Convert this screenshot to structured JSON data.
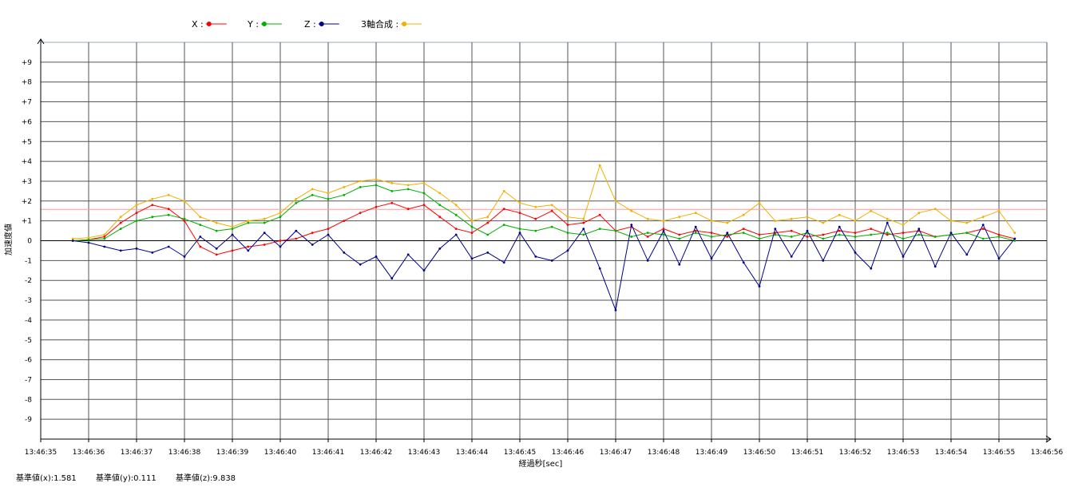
{
  "chart_data": {
    "type": "line",
    "xlabel": "経過秒[sec]",
    "ylabel": "加速度値",
    "x_ticks": [
      "13:46:35",
      "13:46:36",
      "13:46:37",
      "13:46:38",
      "13:46:39",
      "13:46:40",
      "13:46:41",
      "13:46:42",
      "13:46:43",
      "13:46:44",
      "13:46:45",
      "13:46:46",
      "13:46:47",
      "13:46:48",
      "13:46:49",
      "13:46:50",
      "13:46:51",
      "13:46:52",
      "13:46:53",
      "13:46:54",
      "13:46:55",
      "13:46:56"
    ],
    "xlim": [
      0,
      21
    ],
    "y_ticks": [
      "+9",
      "+8",
      "+7",
      "+6",
      "+5",
      "+4",
      "+3",
      "+2",
      "+1",
      "0",
      "-1",
      "-2",
      "-3",
      "-4",
      "-5",
      "-6",
      "-7",
      "-8",
      "-9"
    ],
    "ylim": [
      -10,
      10
    ],
    "grid": true,
    "legend_position": "top",
    "reference_line": 1.581,
    "series": [
      {
        "name": "X",
        "legend_label": "X :",
        "color": "#ff0000",
        "x": [
          0.67,
          1.0,
          1.33,
          1.67,
          2.0,
          2.33,
          2.67,
          3.0,
          3.33,
          3.67,
          4.0,
          4.33,
          4.67,
          5.0,
          5.33,
          5.67,
          6.0,
          6.33,
          6.67,
          7.0,
          7.33,
          7.67,
          8.0,
          8.33,
          8.67,
          9.0,
          9.33,
          9.67,
          10.0,
          10.33,
          10.67,
          11.0,
          11.33,
          11.67,
          12.0,
          12.33,
          12.67,
          13.0,
          13.33,
          13.67,
          14.0,
          14.33,
          14.67,
          15.0,
          15.33,
          15.67,
          16.0,
          16.33,
          16.67,
          17.0,
          17.33,
          17.67,
          18.0,
          18.33,
          18.67,
          19.0,
          19.33,
          19.67,
          20.0,
          20.33
        ],
        "y": [
          0.0,
          0.05,
          0.2,
          0.9,
          1.4,
          1.8,
          1.6,
          1.0,
          -0.3,
          -0.7,
          -0.5,
          -0.3,
          -0.2,
          0.0,
          0.1,
          0.4,
          0.6,
          1.0,
          1.4,
          1.7,
          1.9,
          1.6,
          1.8,
          1.2,
          0.6,
          0.4,
          0.9,
          1.6,
          1.4,
          1.1,
          1.5,
          0.8,
          0.9,
          1.3,
          0.5,
          0.7,
          0.2,
          0.6,
          0.3,
          0.5,
          0.4,
          0.2,
          0.6,
          0.3,
          0.4,
          0.5,
          0.2,
          0.3,
          0.5,
          0.4,
          0.6,
          0.3,
          0.4,
          0.5,
          0.2,
          0.3,
          0.4,
          0.6,
          0.3,
          0.1
        ]
      },
      {
        "name": "Y",
        "legend_label": "Y :",
        "color": "#00b000",
        "x": [
          0.67,
          1.0,
          1.33,
          1.67,
          2.0,
          2.33,
          2.67,
          3.0,
          3.33,
          3.67,
          4.0,
          4.33,
          4.67,
          5.0,
          5.33,
          5.67,
          6.0,
          6.33,
          6.67,
          7.0,
          7.33,
          7.67,
          8.0,
          8.33,
          8.67,
          9.0,
          9.33,
          9.67,
          10.0,
          10.33,
          10.67,
          11.0,
          11.33,
          11.67,
          12.0,
          12.33,
          12.67,
          13.0,
          13.33,
          13.67,
          14.0,
          14.33,
          14.67,
          15.0,
          15.33,
          15.67,
          16.0,
          16.33,
          16.67,
          17.0,
          17.33,
          17.67,
          18.0,
          18.33,
          18.67,
          19.0,
          19.33,
          19.67,
          20.0,
          20.33
        ],
        "y": [
          0.0,
          0.05,
          0.1,
          0.6,
          1.0,
          1.2,
          1.3,
          1.1,
          0.8,
          0.5,
          0.6,
          0.9,
          0.9,
          1.2,
          1.9,
          2.3,
          2.1,
          2.3,
          2.7,
          2.8,
          2.5,
          2.6,
          2.4,
          1.8,
          1.3,
          0.7,
          0.3,
          0.8,
          0.6,
          0.5,
          0.7,
          0.4,
          0.3,
          0.6,
          0.5,
          0.2,
          0.4,
          0.3,
          0.1,
          0.4,
          0.2,
          0.3,
          0.4,
          0.1,
          0.3,
          0.2,
          0.4,
          0.1,
          0.3,
          0.2,
          0.3,
          0.4,
          0.1,
          0.3,
          0.2,
          0.3,
          0.4,
          0.1,
          0.2,
          0.0
        ]
      },
      {
        "name": "Z",
        "legend_label": "Z :",
        "color": "#00008b",
        "x": [
          0.67,
          1.0,
          1.33,
          1.67,
          2.0,
          2.33,
          2.67,
          3.0,
          3.33,
          3.67,
          4.0,
          4.33,
          4.67,
          5.0,
          5.33,
          5.67,
          6.0,
          6.33,
          6.67,
          7.0,
          7.33,
          7.67,
          8.0,
          8.33,
          8.67,
          9.0,
          9.33,
          9.67,
          10.0,
          10.33,
          10.67,
          11.0,
          11.33,
          11.67,
          12.0,
          12.33,
          12.67,
          13.0,
          13.33,
          13.67,
          14.0,
          14.33,
          14.67,
          15.0,
          15.33,
          15.67,
          16.0,
          16.33,
          16.67,
          17.0,
          17.33,
          17.67,
          18.0,
          18.33,
          18.67,
          19.0,
          19.33,
          19.67,
          20.0,
          20.33
        ],
        "y": [
          0.0,
          -0.1,
          -0.3,
          -0.5,
          -0.4,
          -0.6,
          -0.3,
          -0.8,
          0.2,
          -0.4,
          0.3,
          -0.5,
          0.4,
          -0.3,
          0.5,
          -0.2,
          0.3,
          -0.6,
          -1.2,
          -0.8,
          -1.9,
          -0.7,
          -1.5,
          -0.4,
          0.3,
          -0.9,
          -0.6,
          -1.1,
          0.4,
          -0.8,
          -1.0,
          -0.5,
          0.6,
          -1.4,
          -3.5,
          0.8,
          -1.0,
          0.5,
          -1.2,
          0.7,
          -0.9,
          0.4,
          -1.1,
          -2.3,
          0.6,
          -0.8,
          0.5,
          -1.0,
          0.7,
          -0.6,
          -1.4,
          0.9,
          -0.8,
          0.6,
          -1.3,
          0.4,
          -0.7,
          0.8,
          -0.9,
          0.1
        ]
      },
      {
        "name": "3軸合成",
        "legend_label": "3軸合成 :",
        "color": "#f0b000",
        "x": [
          0.67,
          1.0,
          1.33,
          1.67,
          2.0,
          2.33,
          2.67,
          3.0,
          3.33,
          3.67,
          4.0,
          4.33,
          4.67,
          5.0,
          5.33,
          5.67,
          6.0,
          6.33,
          6.67,
          7.0,
          7.33,
          7.67,
          8.0,
          8.33,
          8.67,
          9.0,
          9.33,
          9.67,
          10.0,
          10.33,
          10.67,
          11.0,
          11.33,
          11.67,
          12.0,
          12.33,
          12.67,
          13.0,
          13.33,
          13.67,
          14.0,
          14.33,
          14.67,
          15.0,
          15.33,
          15.67,
          16.0,
          16.33,
          16.67,
          17.0,
          17.33,
          17.67,
          18.0,
          18.33,
          18.67,
          19.0,
          19.33,
          19.67,
          20.0,
          20.33
        ],
        "y": [
          0.1,
          0.15,
          0.3,
          1.2,
          1.8,
          2.1,
          2.3,
          2.0,
          1.2,
          0.9,
          0.7,
          1.0,
          1.1,
          1.4,
          2.1,
          2.6,
          2.4,
          2.7,
          3.0,
          3.1,
          2.9,
          2.8,
          2.9,
          2.4,
          1.8,
          1.0,
          1.2,
          2.5,
          1.9,
          1.7,
          1.8,
          1.2,
          1.1,
          3.8,
          2.0,
          1.5,
          1.1,
          1.0,
          1.2,
          1.4,
          1.0,
          0.9,
          1.3,
          1.9,
          1.0,
          1.1,
          1.2,
          0.9,
          1.3,
          1.0,
          1.5,
          1.1,
          0.8,
          1.4,
          1.6,
          1.0,
          0.9,
          1.2,
          1.5,
          0.4
        ]
      }
    ]
  },
  "reference_values": {
    "x": "基準値(x):1.581",
    "y": "基準値(y):0.111",
    "z": "基準値(z):9.838"
  }
}
